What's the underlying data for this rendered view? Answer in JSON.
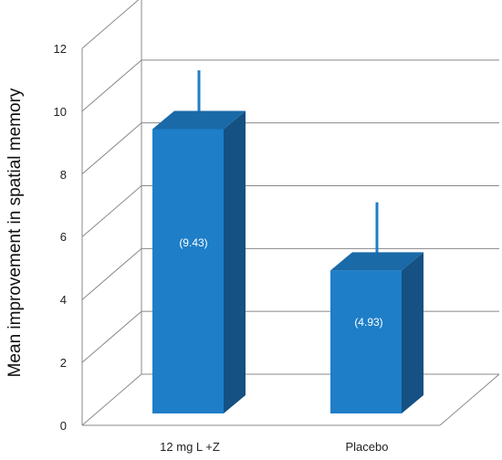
{
  "chart_data": {
    "type": "bar",
    "style": "3d-clustered-column",
    "categories": [
      "12 mg L +Z",
      "Placebo"
    ],
    "values": [
      9.43,
      4.93
    ],
    "data_labels": [
      "(9.43)",
      "(4.93)"
    ],
    "error_bar_tops": [
      11.3,
      7.1
    ],
    "ylabel": "Mean improvement in spatial memory",
    "xlabel": "",
    "ylim": [
      0,
      12
    ],
    "yticks": [
      "0",
      "2",
      "4",
      "6",
      "8",
      "10",
      "12"
    ],
    "grid": true,
    "legend": "none",
    "colors": {
      "bar_front": "#1e7ec8",
      "bar_top": "#1a6aa8",
      "bar_side": "#155182",
      "error_bar": "#1e7ec8",
      "gridline": "#888888"
    }
  }
}
